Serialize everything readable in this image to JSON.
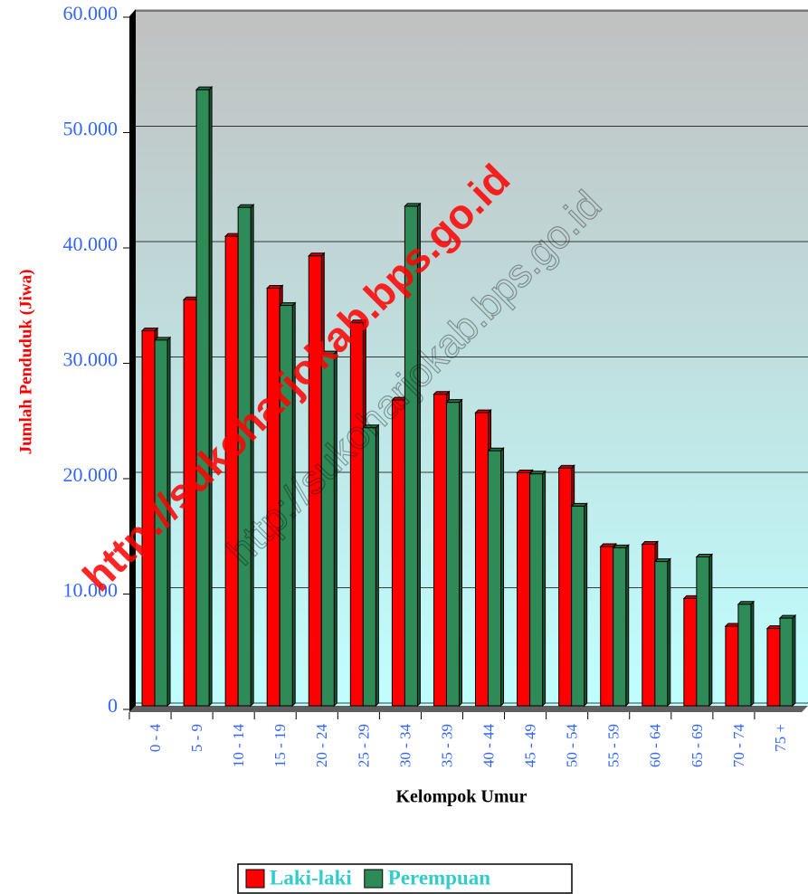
{
  "chart_data": {
    "type": "bar",
    "y_axis_label": "Jumlah Penduduk (Jiwa)",
    "x_axis_label": "Kelompok Umur",
    "watermark": "http://sukoharjokab.bps.go.id",
    "categories": [
      "0 - 4",
      "5 - 9",
      "10 - 14",
      "15 - 19",
      "20 - 24",
      "25 - 29",
      "30 - 34",
      "35 - 39",
      "40 - 44",
      "45 - 49",
      "50 - 54",
      "55 - 59",
      "60 - 64",
      "65 - 69",
      "70 - 74",
      "75 +"
    ],
    "series": [
      {
        "name": "Laki-laki",
        "color": "#ff0000",
        "values": [
          32500,
          35200,
          40700,
          36200,
          39000,
          33200,
          26500,
          27000,
          25400,
          20200,
          20600,
          13800,
          14000,
          9300,
          6900,
          6700
        ]
      },
      {
        "name": "Perempuan",
        "color": "#2e8b57",
        "values": [
          31700,
          53400,
          43200,
          34700,
          30500,
          24100,
          43300,
          26300,
          22100,
          20100,
          17300,
          13700,
          12500,
          12900,
          8800,
          7600
        ]
      }
    ],
    "ylim": [
      0,
      60000
    ],
    "yticks": [
      0,
      {
        "value": 10000,
        "label": "10.000"
      },
      {
        "value": 20000,
        "label": "20.000"
      },
      {
        "value": 30000,
        "label": "30.000"
      },
      {
        "value": 40000,
        "label": "40.000"
      },
      {
        "value": 50000,
        "label": "50.000"
      },
      {
        "value": 60000,
        "label": "60.000"
      }
    ],
    "grid": true
  }
}
